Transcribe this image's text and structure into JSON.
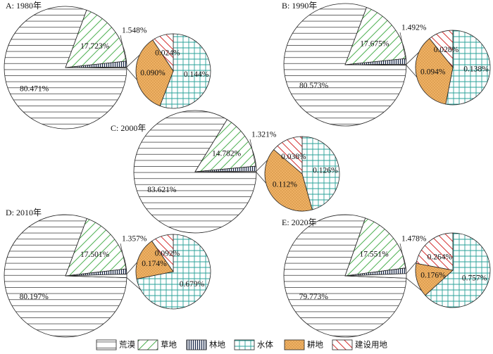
{
  "chart_data": [
    {
      "type": "pie",
      "title": "A: 1980年",
      "categories": [
        "荒漠",
        "草地",
        "林地",
        "耕地",
        "建设用地",
        "水体"
      ],
      "values": [
        80.471,
        17.723,
        1.548,
        0.09,
        0.024,
        0.144
      ],
      "labels": [
        "80.471%",
        "17.723%",
        "1.548%",
        "0.090%",
        "0.024%",
        "0.144%"
      ]
    },
    {
      "type": "pie",
      "title": "B: 1990年",
      "categories": [
        "荒漠",
        "草地",
        "林地",
        "耕地",
        "建设用地",
        "水体"
      ],
      "values": [
        80.573,
        17.675,
        1.492,
        0.094,
        0.028,
        0.138
      ],
      "labels": [
        "80.573%",
        "17.675%",
        "1.492%",
        "0.094%",
        "0.028%",
        "0.138%"
      ]
    },
    {
      "type": "pie",
      "title": "C: 2000年",
      "categories": [
        "荒漠",
        "草地",
        "林地",
        "耕地",
        "建设用地",
        "水体"
      ],
      "values": [
        83.621,
        14.782,
        1.321,
        0.112,
        0.038,
        0.126
      ],
      "labels": [
        "83.621%",
        "14.782%",
        "1.321%",
        "0.112%",
        "0.038%",
        "0.126%"
      ]
    },
    {
      "type": "pie",
      "title": "D: 2010年",
      "categories": [
        "荒漠",
        "草地",
        "林地",
        "耕地",
        "建设用地",
        "水体"
      ],
      "values": [
        80.197,
        17.501,
        1.357,
        0.174,
        0.092,
        0.679
      ],
      "labels": [
        "80.197%",
        "17.501%",
        "1.357%",
        "0.174%",
        "0.092%",
        "0.679%"
      ]
    },
    {
      "type": "pie",
      "title": "E: 2020年",
      "categories": [
        "荒漠",
        "草地",
        "林地",
        "耕地",
        "建设用地",
        "水体"
      ],
      "values": [
        79.773,
        17.551,
        1.478,
        0.176,
        0.264,
        0.757
      ],
      "labels": [
        "79.773%",
        "17.551%",
        "1.478%",
        "0.176%",
        "0.264%",
        "0.757%"
      ]
    }
  ],
  "legend": {
    "placement": "bottom",
    "items": [
      {
        "label": "荒漠",
        "pattern": "horizontal-lines",
        "color": "#333333"
      },
      {
        "label": "草地",
        "pattern": "diagonal-lines",
        "color": "#4caf50"
      },
      {
        "label": "林地",
        "pattern": "vertical-lines",
        "color": "#1a2a4a"
      },
      {
        "label": "水体",
        "pattern": "grid",
        "color": "#2aa198"
      },
      {
        "label": "耕地",
        "pattern": "dotted",
        "color": "#e8a64e"
      },
      {
        "label": "建设用地",
        "pattern": "back-diagonal-lines",
        "color": "#d32f2f"
      }
    ]
  }
}
